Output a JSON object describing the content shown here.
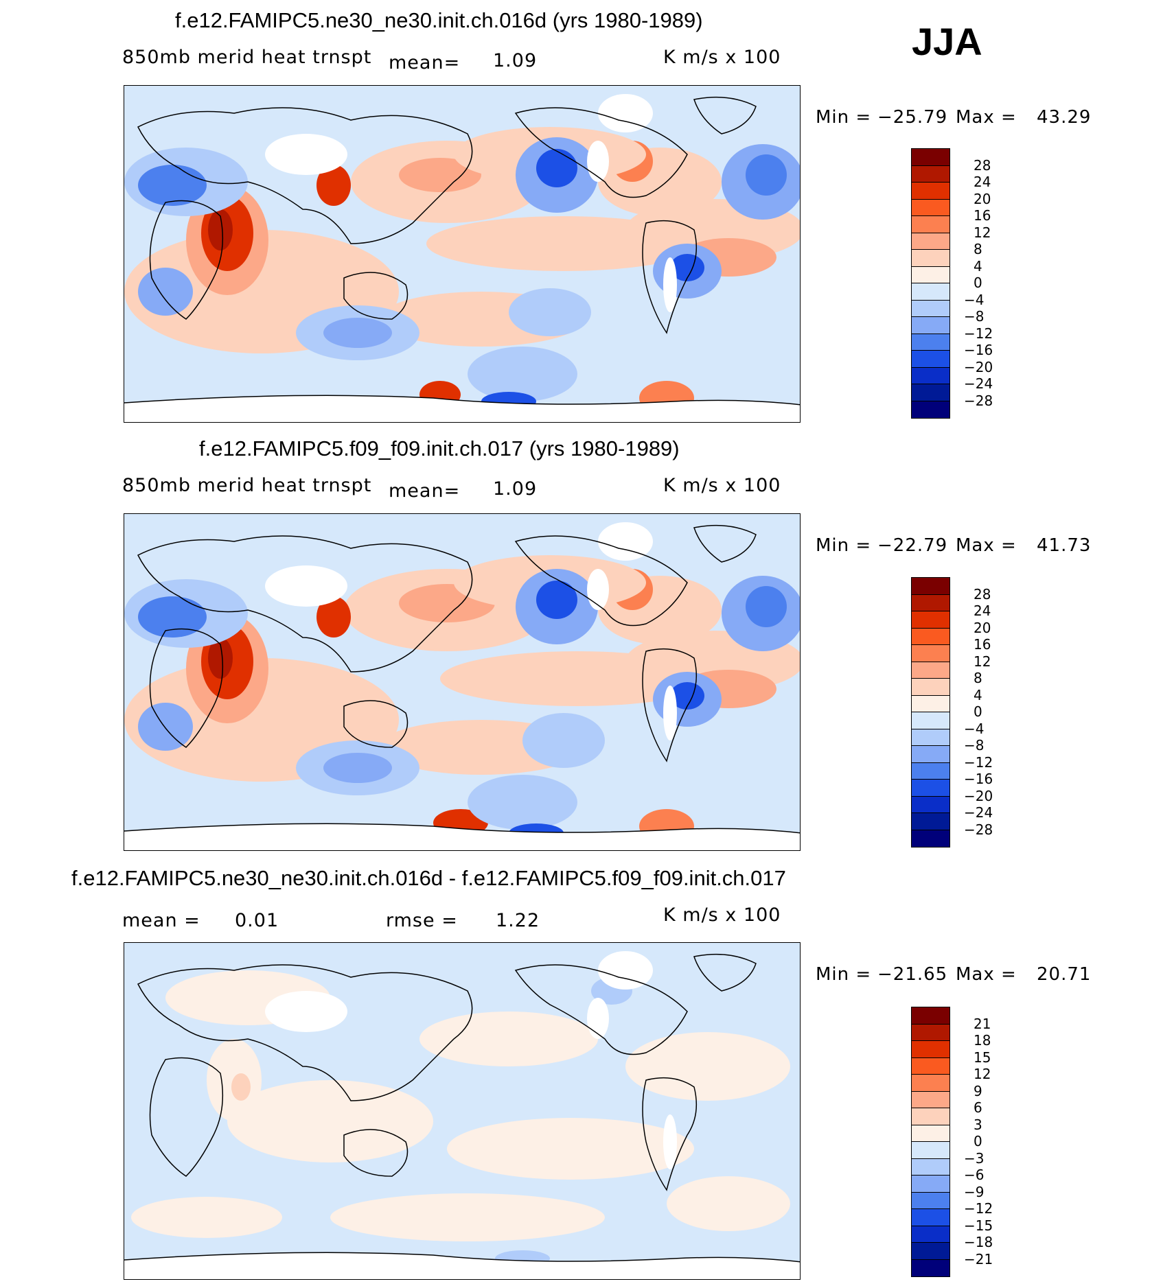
{
  "season": "JJA",
  "units": "K  m/s  x  100",
  "panels": [
    {
      "title": "f.e12.FAMIPC5.ne30_ne30.init.ch.016d (yrs 1980-1989)",
      "variable": "850mb  merid  heat  trnspt",
      "stat1_label": "mean=",
      "stat1_value": "1.09",
      "stat2_label": "",
      "stat2_value": "",
      "min_label": "Min  =",
      "min_value": "−25.79",
      "max_label": "Max  =",
      "max_value": "43.29",
      "levels": [
        "28",
        "24",
        "20",
        "16",
        "12",
        "8",
        "4",
        "0",
        "−4",
        "−8",
        "−12",
        "−16",
        "−20",
        "−24",
        "−28"
      ]
    },
    {
      "title": "f.e12.FAMIPC5.f09_f09.init.ch.017 (yrs 1980-1989)",
      "variable": "850mb  merid  heat  trnspt",
      "stat1_label": "mean=",
      "stat1_value": "1.09",
      "stat2_label": "",
      "stat2_value": "",
      "min_label": "Min  =",
      "min_value": "−22.79",
      "max_label": "Max  =",
      "max_value": "41.73",
      "levels": [
        "28",
        "24",
        "20",
        "16",
        "12",
        "8",
        "4",
        "0",
        "−4",
        "−8",
        "−12",
        "−16",
        "−20",
        "−24",
        "−28"
      ]
    },
    {
      "title": "f.e12.FAMIPC5.ne30_ne30.init.ch.016d - f.e12.FAMIPC5.f09_f09.init.ch.017",
      "variable": "",
      "stat1_label": "mean  =",
      "stat1_value": "0.01",
      "stat2_label": "rmse  =",
      "stat2_value": "1.22",
      "min_label": "Min  =",
      "min_value": "−21.65",
      "max_label": "Max  =",
      "max_value": "20.71",
      "levels": [
        "21",
        "18",
        "15",
        "12",
        "9",
        "6",
        "3",
        "0",
        "−3",
        "−6",
        "−9",
        "−12",
        "−15",
        "−18",
        "−21"
      ]
    }
  ],
  "colorbar_colors": [
    "#7a0000",
    "#b01800",
    "#e03000",
    "#fa5a20",
    "#fc8050",
    "#fca888",
    "#fdd2bc",
    "#fdf0e6",
    "#d6e8fb",
    "#b0ccfa",
    "#86aaf6",
    "#4c80ee",
    "#1c50e6",
    "#0a2ec8",
    "#001a96",
    "#00007a"
  ]
}
